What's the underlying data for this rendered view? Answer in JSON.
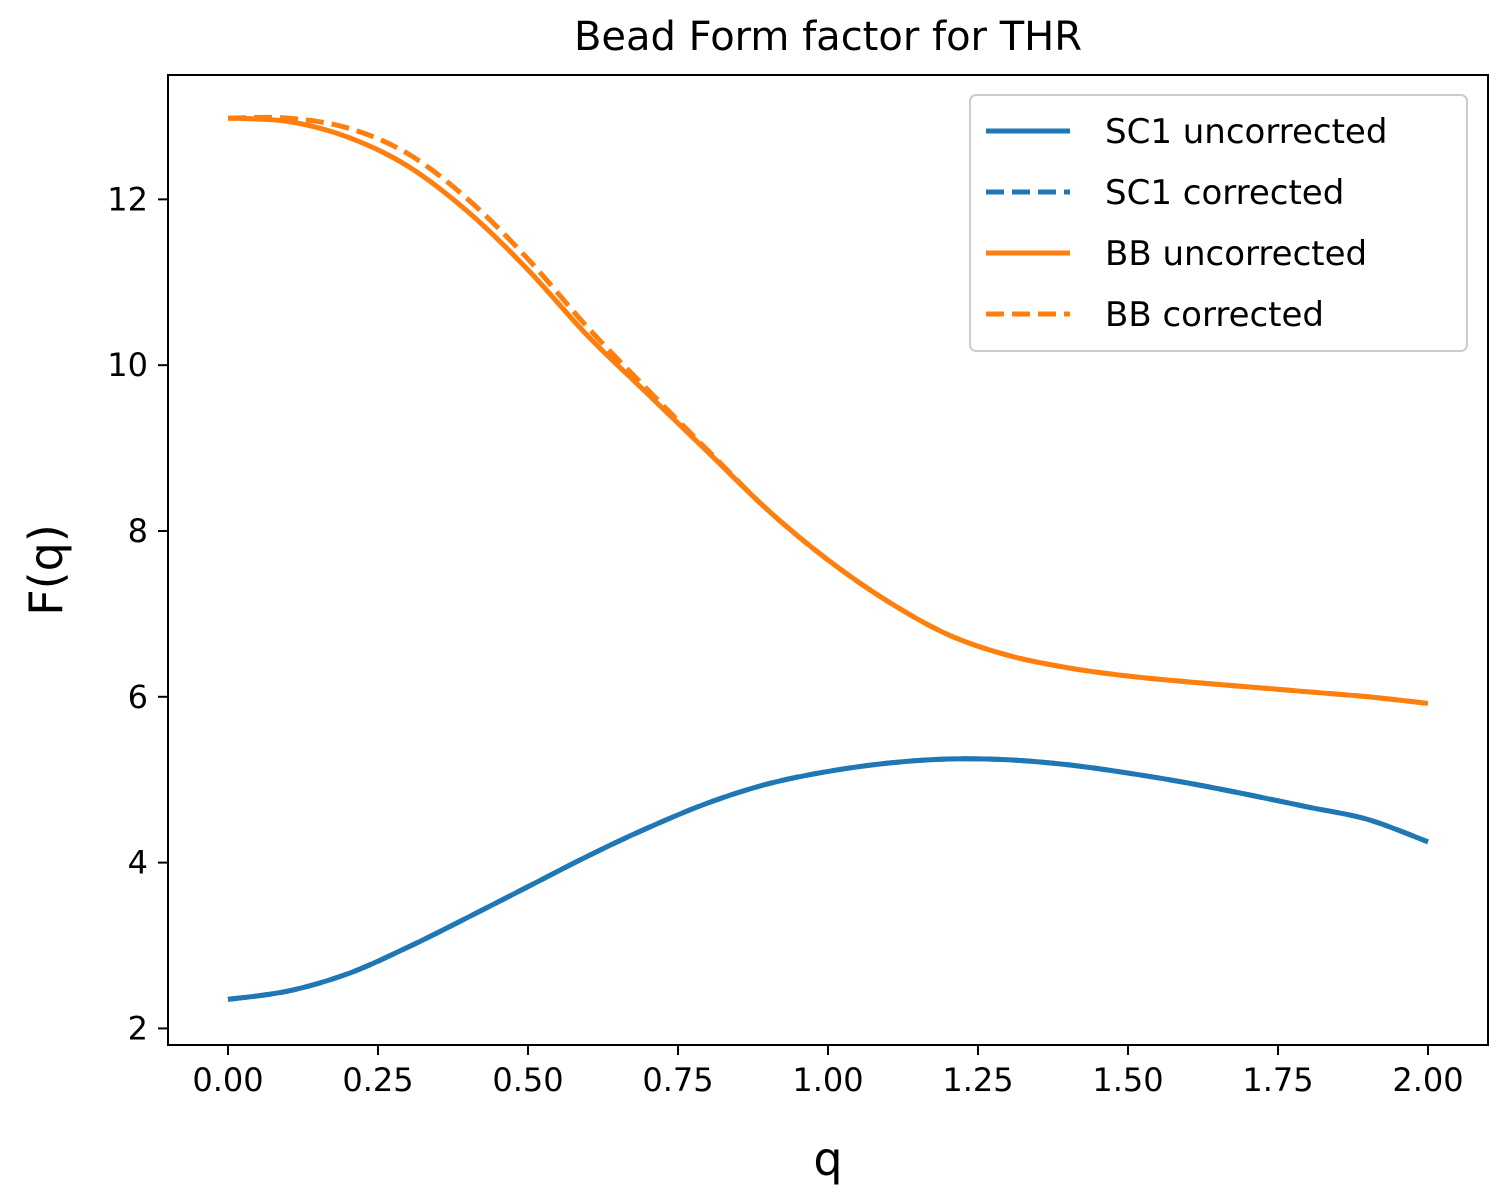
{
  "chart_data": {
    "type": "line",
    "title": "Bead Form factor for THR",
    "xlabel": "q",
    "ylabel": "F(q)",
    "xlim": [
      -0.1,
      2.1
    ],
    "ylim": [
      1.8,
      13.5
    ],
    "xticks": [
      "0.00",
      "0.25",
      "0.50",
      "0.75",
      "1.00",
      "1.25",
      "1.50",
      "1.75",
      "2.00"
    ],
    "xtick_values": [
      0,
      0.25,
      0.5,
      0.75,
      1.0,
      1.25,
      1.5,
      1.75,
      2.0
    ],
    "yticks": [
      "2",
      "4",
      "6",
      "8",
      "10",
      "12"
    ],
    "ytick_values": [
      2,
      4,
      6,
      8,
      10,
      12
    ],
    "grid": false,
    "legend_position": "upper right",
    "x": [
      0.0,
      0.1,
      0.2,
      0.3,
      0.4,
      0.5,
      0.6,
      0.7,
      0.8,
      0.9,
      1.0,
      1.1,
      1.2,
      1.3,
      1.4,
      1.5,
      1.6,
      1.7,
      1.8,
      1.9,
      2.0
    ],
    "series": [
      {
        "name": "SC1 uncorrected",
        "color": "#1f77b4",
        "dash": "solid",
        "values": [
          2.35,
          2.45,
          2.66,
          2.98,
          3.34,
          3.71,
          4.08,
          4.42,
          4.72,
          4.95,
          5.1,
          5.2,
          5.25,
          5.24,
          5.18,
          5.08,
          4.96,
          4.82,
          4.67,
          4.52,
          4.25
        ]
      },
      {
        "name": "SC1 corrected",
        "color": "#1f77b4",
        "dash": "dashed",
        "values": [
          2.35,
          2.45,
          2.66,
          2.98,
          3.34,
          3.71,
          4.08,
          4.42,
          4.72,
          4.95,
          5.1,
          5.2,
          5.25,
          5.24,
          5.18,
          5.08,
          4.96,
          4.82,
          4.67,
          4.52,
          4.25
        ]
      },
      {
        "name": "BB uncorrected",
        "color": "#ff7f0e",
        "dash": "solid",
        "values": [
          12.98,
          12.94,
          12.75,
          12.4,
          11.85,
          11.15,
          10.35,
          9.65,
          8.95,
          8.25,
          7.65,
          7.15,
          6.75,
          6.5,
          6.35,
          6.25,
          6.18,
          6.12,
          6.06,
          6.0,
          5.92
        ]
      },
      {
        "name": "BB corrected",
        "color": "#ff7f0e",
        "dash": "dashed",
        "values": [
          12.98,
          12.98,
          12.86,
          12.55,
          12.0,
          11.28,
          10.45,
          9.7,
          8.97,
          8.25,
          7.65,
          7.15,
          6.75,
          6.5,
          6.35,
          6.25,
          6.18,
          6.12,
          6.06,
          6.0,
          5.92
        ]
      }
    ]
  }
}
